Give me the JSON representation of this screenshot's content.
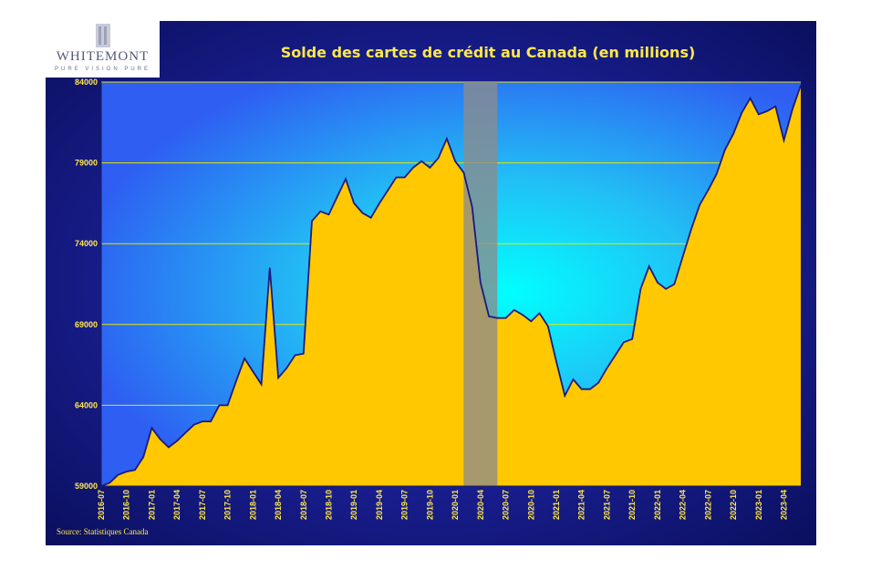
{
  "logo": {
    "name": "WHITEMONT",
    "tagline": "PURE VISION PURE"
  },
  "source": "Source:  Statistiques Canada",
  "colors": {
    "area": "#ffc800",
    "line": "#1a1a80",
    "grid": "#e6e600",
    "tick_text": "#ffe84a",
    "shade": "#8c8c8c"
  },
  "chart_data": {
    "type": "area",
    "title": "Solde des cartes de crédit au Canada (en millions)",
    "xlabel": "",
    "ylabel": "",
    "ylim": [
      59000,
      84000
    ],
    "yticks": [
      59000,
      64000,
      69000,
      74000,
      79000,
      84000
    ],
    "ytick_labels": [
      "59000",
      "64000",
      "69000",
      "74000",
      "79000",
      "84000"
    ],
    "xtick_labels": [
      "2016-07",
      "2016-10",
      "2017-01",
      "2017-04",
      "2017-07",
      "2017-10",
      "2018-01",
      "2018-04",
      "2018-07",
      "2018-10",
      "2019-01",
      "2019-04",
      "2019-07",
      "2019-10",
      "2020-01",
      "2020-04",
      "2020-07",
      "2020-10",
      "2021-01",
      "2021-04",
      "2021-07",
      "2021-10",
      "2022-01",
      "2022-04",
      "2022-07",
      "2022-10",
      "2023-01",
      "2023-04"
    ],
    "x": [
      "2016-07",
      "2016-08",
      "2016-09",
      "2016-10",
      "2016-11",
      "2016-12",
      "2017-01",
      "2017-02",
      "2017-03",
      "2017-04",
      "2017-05",
      "2017-06",
      "2017-07",
      "2017-08",
      "2017-09",
      "2017-10",
      "2017-11",
      "2017-12",
      "2018-01",
      "2018-02",
      "2018-03",
      "2018-04",
      "2018-05",
      "2018-06",
      "2018-07",
      "2018-08",
      "2018-09",
      "2018-10",
      "2018-11",
      "2018-12",
      "2019-01",
      "2019-02",
      "2019-03",
      "2019-04",
      "2019-05",
      "2019-06",
      "2019-07",
      "2019-08",
      "2019-09",
      "2019-10",
      "2019-11",
      "2019-12",
      "2020-01",
      "2020-02",
      "2020-03",
      "2020-04",
      "2020-05",
      "2020-06",
      "2020-07",
      "2020-08",
      "2020-09",
      "2020-10",
      "2020-11",
      "2020-12",
      "2021-01",
      "2021-02",
      "2021-03",
      "2021-04",
      "2021-05",
      "2021-06",
      "2021-07",
      "2021-08",
      "2021-09",
      "2021-10",
      "2021-11",
      "2021-12",
      "2022-01",
      "2022-02",
      "2022-03",
      "2022-04",
      "2022-05",
      "2022-06",
      "2022-07",
      "2022-08",
      "2022-09",
      "2022-10",
      "2022-11",
      "2022-12",
      "2023-01",
      "2023-02",
      "2023-03",
      "2023-04",
      "2023-05",
      "2023-06"
    ],
    "series": [
      {
        "values": [
          59000,
          59200,
          59700,
          59900,
          60000,
          60800,
          62600,
          61900,
          61400,
          61800,
          62300,
          62800,
          63000,
          63000,
          64000,
          64000,
          65500,
          66900,
          66100,
          65300,
          72500,
          65700,
          66300,
          67100,
          67200,
          75400,
          76000,
          75800,
          76900,
          78000,
          76500,
          75900,
          75600,
          76500,
          77300,
          78100,
          78100,
          78700,
          79100,
          78700,
          79300,
          80500,
          79100,
          78400,
          76300,
          71600,
          69500,
          69400,
          69400,
          69900,
          69600,
          69200,
          69700,
          68900,
          66700,
          64600,
          65600,
          65000,
          65000,
          65400,
          66300,
          67100,
          67900,
          68100,
          71200,
          72600,
          71600,
          71200,
          71500,
          73200,
          74900,
          76400,
          77300,
          78300,
          79800,
          80800,
          82100,
          83000,
          82000,
          82200,
          82500,
          80400,
          82300,
          83800
        ]
      }
    ],
    "shaded_region": {
      "from": "2020-02",
      "to": "2020-06"
    },
    "grid": true,
    "legend": "none"
  }
}
